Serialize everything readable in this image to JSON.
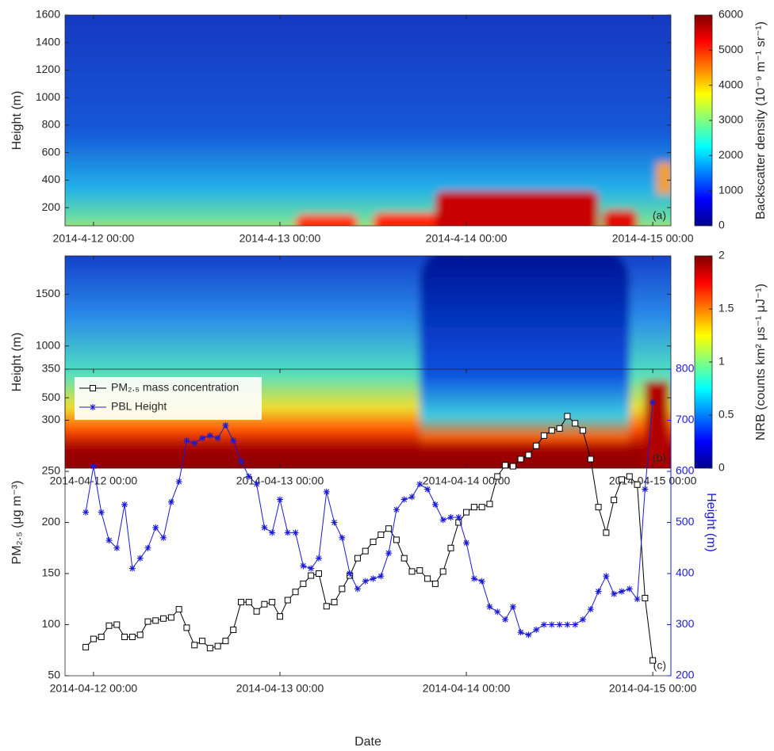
{
  "chart_data": [
    {
      "type": "heatmap",
      "colormap": "jet",
      "ylabel": "Height (m)",
      "colorbar_label": "Backscatter density (10⁻⁹ m⁻¹ sr⁻¹)",
      "annotation": "(a)",
      "xlim": [
        "2014-04-11 20:20",
        "2014-04-15 02:20"
      ],
      "xticks": [
        {
          "value": "2014-04-12 00:00",
          "label": "2014-4-12 00:00"
        },
        {
          "value": "2014-04-13 00:00",
          "label": "2014-4-13 00:00"
        },
        {
          "value": "2014-04-14 00:00",
          "label": "2014-4-14 00:00"
        },
        {
          "value": "2014-04-15 00:00",
          "label": "2014-4-15 00:00"
        }
      ],
      "ylim": [
        68,
        1600
      ],
      "yticks": [
        200,
        400,
        600,
        800,
        1000,
        1200,
        1400,
        1600
      ],
      "clim": [
        0,
        6000
      ],
      "cticks": [
        0,
        1000,
        2000,
        3000,
        4000,
        5000,
        6000
      ]
    },
    {
      "type": "heatmap",
      "colormap": "jet",
      "ylabel": "Height (m)",
      "colorbar_label": "NRB (counts km² μs⁻¹ μJ⁻¹)",
      "annotation": "(b)",
      "xlim": [
        "2014-04-11 20:20",
        "2014-04-15 02:20"
      ],
      "xticks": [
        "2014-04-12 00:00",
        "2014-04-13 00:00",
        "2014-04-14 00:00",
        "2014-04-15 00:00"
      ],
      "ylim": [
        -180,
        1870
      ],
      "yticks": [
        500,
        1000,
        1500
      ],
      "clim": [
        0,
        2
      ],
      "cticks": [
        0,
        0.5,
        1,
        1.5,
        2
      ]
    },
    {
      "type": "line",
      "xlabel": "Date",
      "ylabel": "PM₂.₅ (μg m⁻³)",
      "y2label": "Height (m)",
      "annotation": "(c)",
      "legend": "upper left",
      "xlim": [
        "2014-04-11 20:20",
        "2014-04-15 02:20"
      ],
      "xticks": [
        "2014-04-12 00:00",
        "2014-04-13 00:00",
        "2014-04-14 00:00",
        "2014-04-15 00:00"
      ],
      "ylim": [
        50,
        350
      ],
      "yticks": [
        50,
        100,
        150,
        200,
        250,
        300,
        350
      ],
      "y2lim": [
        200,
        800
      ],
      "y2ticks": [
        200,
        300,
        400,
        500,
        600,
        700,
        800
      ],
      "x": [
        "2014-04-11 23:00",
        "2014-04-12 00:00",
        "2014-04-12 01:00",
        "2014-04-12 02:00",
        "2014-04-12 03:00",
        "2014-04-12 04:00",
        "2014-04-12 05:00",
        "2014-04-12 06:00",
        "2014-04-12 07:00",
        "2014-04-12 08:00",
        "2014-04-12 09:00",
        "2014-04-12 10:00",
        "2014-04-12 11:00",
        "2014-04-12 12:00",
        "2014-04-12 13:00",
        "2014-04-12 14:00",
        "2014-04-12 15:00",
        "2014-04-12 16:00",
        "2014-04-12 17:00",
        "2014-04-12 18:00",
        "2014-04-12 19:00",
        "2014-04-12 20:00",
        "2014-04-12 21:00",
        "2014-04-12 22:00",
        "2014-04-12 23:00",
        "2014-04-13 00:00",
        "2014-04-13 01:00",
        "2014-04-13 02:00",
        "2014-04-13 03:00",
        "2014-04-13 04:00",
        "2014-04-13 05:00",
        "2014-04-13 06:00",
        "2014-04-13 07:00",
        "2014-04-13 08:00",
        "2014-04-13 09:00",
        "2014-04-13 10:00",
        "2014-04-13 11:00",
        "2014-04-13 12:00",
        "2014-04-13 13:00",
        "2014-04-13 14:00",
        "2014-04-13 15:00",
        "2014-04-13 16:00",
        "2014-04-13 17:00",
        "2014-04-13 18:00",
        "2014-04-13 19:00",
        "2014-04-13 20:00",
        "2014-04-13 21:00",
        "2014-04-13 22:00",
        "2014-04-13 23:00",
        "2014-04-14 00:00",
        "2014-04-14 01:00",
        "2014-04-14 02:00",
        "2014-04-14 03:00",
        "2014-04-14 04:00",
        "2014-04-14 05:00",
        "2014-04-14 06:00",
        "2014-04-14 07:00",
        "2014-04-14 08:00",
        "2014-04-14 09:00",
        "2014-04-14 10:00",
        "2014-04-14 11:00",
        "2014-04-14 12:00",
        "2014-04-14 13:00",
        "2014-04-14 14:00",
        "2014-04-14 15:00",
        "2014-04-14 16:00",
        "2014-04-14 17:00",
        "2014-04-14 18:00",
        "2014-04-14 19:00",
        "2014-04-14 20:00",
        "2014-04-14 21:00",
        "2014-04-14 22:00",
        "2014-04-14 23:00",
        "2014-04-15 00:00"
      ],
      "series": [
        {
          "name": "PM₂.₅ mass concentration",
          "color": "#000000",
          "marker": "square",
          "values": [
            78,
            86,
            88,
            99,
            100,
            88,
            88,
            90,
            103,
            104,
            106,
            107,
            115,
            97,
            80,
            84,
            77,
            79,
            84,
            95,
            122,
            122,
            113,
            120,
            122,
            108,
            124,
            132,
            140,
            148,
            150,
            118,
            122,
            135,
            148,
            165,
            172,
            181,
            188,
            194,
            183,
            165,
            152,
            153,
            145,
            140,
            152,
            175,
            200,
            210,
            215,
            215,
            218,
            245,
            256,
            255,
            262,
            266,
            275,
            285,
            290,
            292,
            304,
            297,
            290,
            262,
            215,
            190,
            222,
            242,
            245,
            237,
            126,
            65
          ]
        },
        {
          "name": "PBL Height",
          "color": "#1a1ad6",
          "marker": "star",
          "axis": "y2",
          "values": [
            520,
            610,
            520,
            465,
            450,
            535,
            410,
            430,
            450,
            490,
            470,
            540,
            580,
            660,
            655,
            665,
            670,
            665,
            690,
            660,
            620,
            590,
            575,
            490,
            480,
            545,
            480,
            480,
            415,
            410,
            430,
            560,
            500,
            470,
            400,
            370,
            385,
            390,
            395,
            440,
            525,
            545,
            550,
            575,
            565,
            535,
            505,
            510,
            510,
            460,
            390,
            385,
            335,
            325,
            310,
            335,
            285,
            280,
            290,
            300,
            300,
            300,
            300,
            300,
            310,
            330,
            365,
            395,
            360,
            365,
            370,
            350,
            565,
            735
          ]
        }
      ]
    }
  ]
}
